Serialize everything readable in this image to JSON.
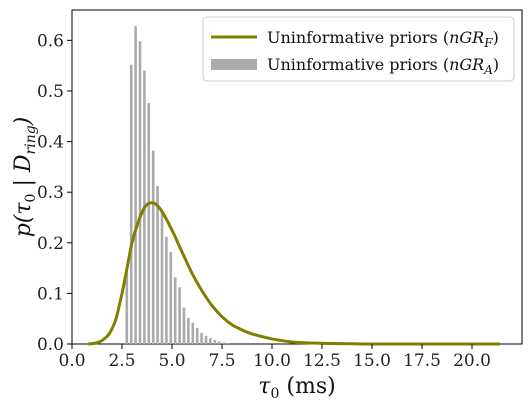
{
  "chart_data": {
    "type": "line",
    "xlabel": "τ₀ (ms)",
    "ylabel": "p(τ₀ | D_ring)",
    "xlim": [
      0,
      22.5
    ],
    "ylim": [
      0,
      0.66
    ],
    "xticks": [
      "0.0",
      "2.5",
      "5.0",
      "7.5",
      "10.0",
      "12.5",
      "15.0",
      "17.5",
      "20.0"
    ],
    "xtick_values": [
      0,
      2.5,
      5,
      7.5,
      10,
      12.5,
      15,
      17.5,
      20
    ],
    "yticks": [
      "0.0",
      "0.1",
      "0.2",
      "0.3",
      "0.4",
      "0.5",
      "0.6"
    ],
    "ytick_values": [
      0,
      0.1,
      0.2,
      0.3,
      0.4,
      0.5,
      0.6
    ],
    "grid": false,
    "legend_position": "top-right",
    "series": [
      {
        "name": "Uninformative priors (nGR_F)",
        "style": "line",
        "color": "#808000",
        "x": [
          0.8,
          1.2,
          1.5,
          1.8,
          2.0,
          2.2,
          2.5,
          2.8,
          3.0,
          3.3,
          3.6,
          3.8,
          4.0,
          4.2,
          4.5,
          5.0,
          5.5,
          6.0,
          6.5,
          7.0,
          7.5,
          8.0,
          8.5,
          9.0,
          10.0,
          11.0,
          12.0,
          13.0,
          14.0,
          15.0,
          17.5,
          20.0,
          21.4
        ],
        "y": [
          0.0,
          0.002,
          0.007,
          0.017,
          0.03,
          0.05,
          0.1,
          0.16,
          0.2,
          0.24,
          0.268,
          0.277,
          0.279,
          0.276,
          0.262,
          0.225,
          0.182,
          0.14,
          0.105,
          0.076,
          0.054,
          0.038,
          0.028,
          0.02,
          0.01,
          0.004,
          0.002,
          0.001,
          0.0005,
          0.0,
          0.0,
          0.0,
          0.0
        ]
      },
      {
        "name": "Uninformative priors (nGR_A)",
        "style": "bar",
        "color": "#aaaaaa",
        "x": [
          2.74,
          2.96,
          3.18,
          3.4,
          3.62,
          3.84,
          4.06,
          4.28,
          4.5,
          4.72,
          4.94,
          5.16,
          5.38,
          5.6,
          5.82,
          6.04,
          6.26,
          6.48,
          6.7,
          6.92,
          7.14,
          7.36,
          7.58,
          7.8
        ],
        "y": [
          0.145,
          0.552,
          0.628,
          0.598,
          0.54,
          0.476,
          0.382,
          0.312,
          0.262,
          0.212,
          0.182,
          0.132,
          0.112,
          0.072,
          0.052,
          0.042,
          0.032,
          0.022,
          0.016,
          0.012,
          0.008,
          0.005,
          0.003,
          0.002
        ]
      }
    ]
  }
}
